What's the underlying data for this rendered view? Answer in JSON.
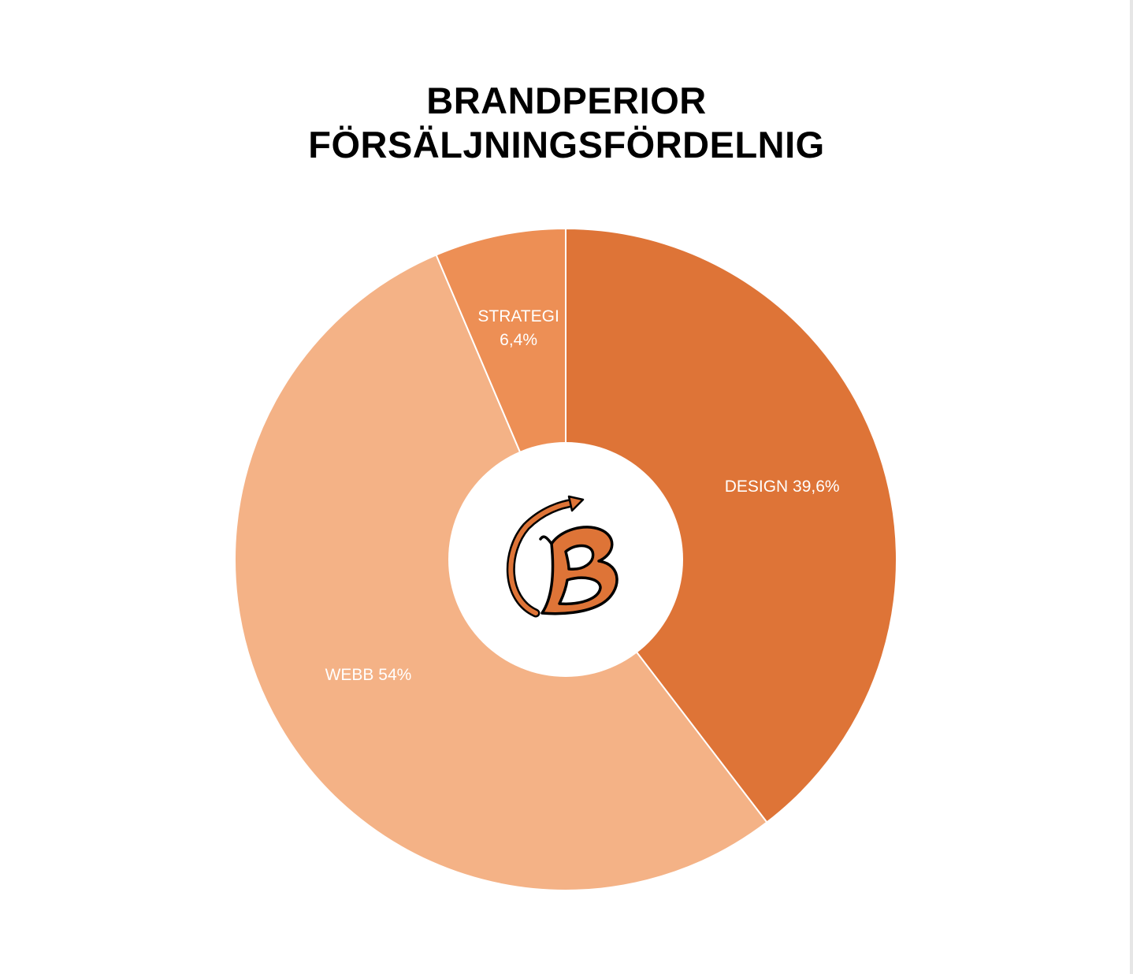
{
  "chart_data": {
    "type": "pie",
    "title_lines": [
      "BRANDPERIOR",
      "FÖRSÄLJNINGSFÖRDELNIG"
    ],
    "slices": [
      {
        "name": "DESIGN",
        "label_lines": [
          "DESIGN 39,6%"
        ],
        "value": 39.6,
        "color": "#DE7437"
      },
      {
        "name": "WEBB",
        "label_lines": [
          "WEBB 54%"
        ],
        "value": 54.0,
        "color": "#F4B286"
      },
      {
        "name": "STRATEGI",
        "label_lines": [
          "STRATEGI",
          "6,4%"
        ],
        "value": 6.4,
        "color": "#ED8F55"
      }
    ],
    "start_angle": "top",
    "direction": "clockwise",
    "donut": true,
    "legend": "none"
  },
  "center_logo": {
    "icon": "b-monogram-logo-icon",
    "colors": {
      "fill": "#DE7437",
      "outline": "#000000"
    }
  }
}
